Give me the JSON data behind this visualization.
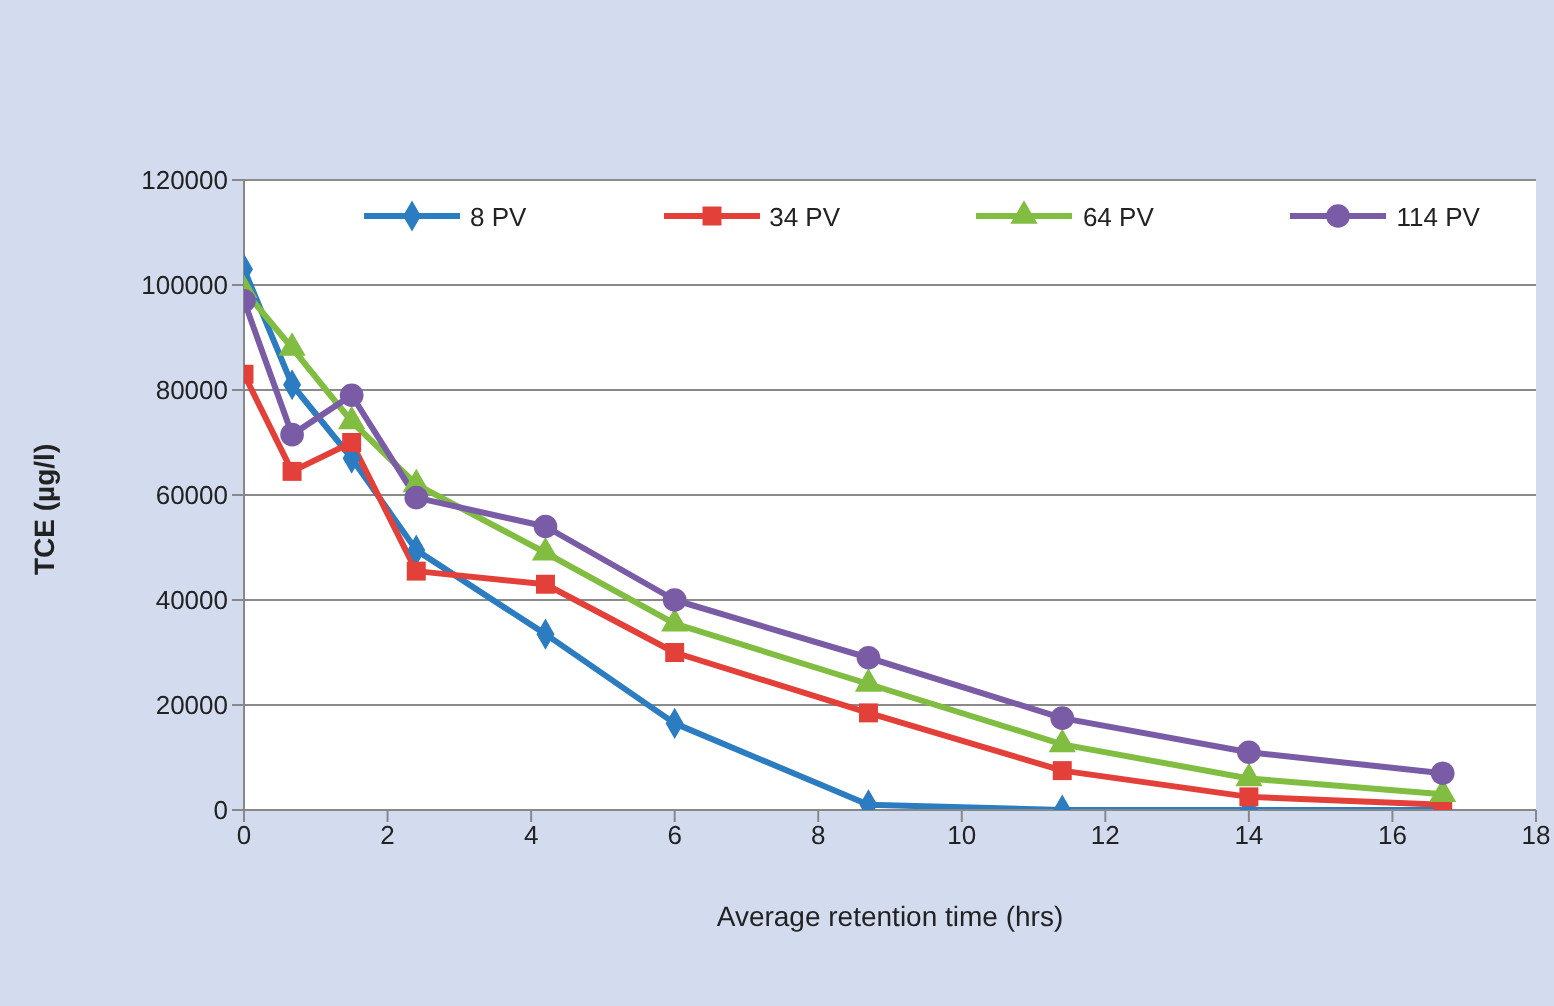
{
  "chart_data": {
    "type": "line",
    "xlabel": "Average retention time (hrs)",
    "ylabel": "TCE (µg/l)",
    "x": [
      0,
      0.67,
      1.5,
      2.4,
      4.2,
      6,
      8.7,
      11.4,
      14,
      16.7
    ],
    "series": [
      {
        "name": "8 PV",
        "color": "#2b7cc0",
        "marker": "diamond",
        "values": [
          103000,
          81000,
          67000,
          49500,
          33500,
          16500,
          1000,
          0,
          0,
          0
        ]
      },
      {
        "name": "34 PV",
        "color": "#e3403a",
        "marker": "square",
        "values": [
          83000,
          64500,
          70000,
          45500,
          43000,
          30000,
          18500,
          7500,
          2500,
          1000
        ]
      },
      {
        "name": "64 PV",
        "color": "#80bd41",
        "marker": "triangle",
        "values": [
          99000,
          88000,
          74000,
          62000,
          49000,
          35500,
          24000,
          12500,
          6000,
          3000
        ]
      },
      {
        "name": "114 PV",
        "color": "#7a5ca6",
        "marker": "circle",
        "values": [
          97000,
          71500,
          79000,
          59500,
          54000,
          40000,
          29000,
          17500,
          11000,
          7000
        ]
      }
    ],
    "xlim": [
      0,
      18
    ],
    "xticks": [
      0,
      2,
      4,
      6,
      8,
      10,
      12,
      14,
      16,
      18
    ],
    "ylim": [
      0,
      120000
    ],
    "yticks": [
      0,
      20000,
      40000,
      60000,
      80000,
      100000,
      120000
    ],
    "grid": "y",
    "legend": "top",
    "line_style": "solid"
  }
}
